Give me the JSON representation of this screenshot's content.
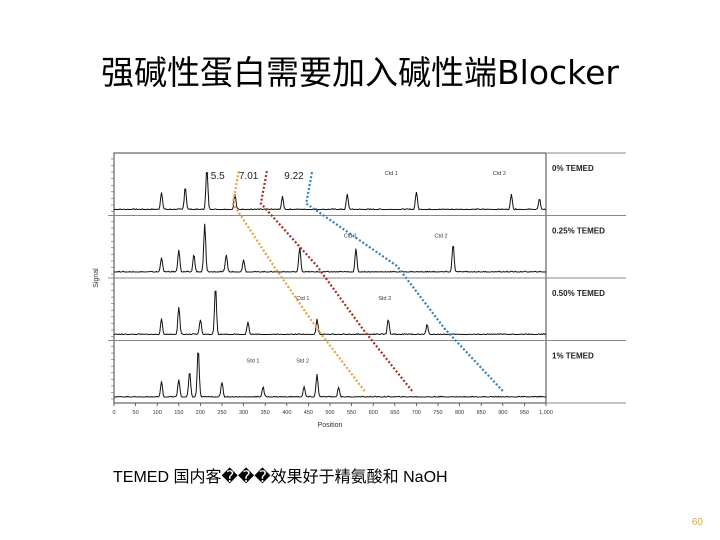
{
  "slide": {
    "title": "强碱性蛋白需要加入碱性端Blocker",
    "caption": "TEMED 国内客���效果好于精氨酸和 NaOH",
    "page_number": "60"
  },
  "chart_data": {
    "type": "line",
    "title": "",
    "xlabel": "Position",
    "ylabel": "Signal",
    "xlim": [
      0,
      1000
    ],
    "x_ticks": [
      0,
      50,
      100,
      150,
      200,
      250,
      300,
      350,
      400,
      450,
      500,
      550,
      600,
      650,
      700,
      750,
      800,
      850,
      900,
      950,
      1000
    ],
    "x_tick_labels": [
      "0",
      "50",
      "100",
      "150",
      "200",
      "250",
      "300",
      "350",
      "400",
      "450",
      "500",
      "550",
      "600",
      "650",
      "700",
      "750",
      "800",
      "850",
      "900",
      "950",
      "1,000"
    ],
    "panels": [
      {
        "name": "0% TEMED",
        "peaks": [
          [
            110,
            0.35
          ],
          [
            165,
            0.45
          ],
          [
            215,
            0.8
          ],
          [
            280,
            0.3
          ],
          [
            390,
            0.25
          ],
          [
            540,
            0.3
          ],
          [
            700,
            0.35
          ],
          [
            920,
            0.3
          ],
          [
            985,
            0.2
          ]
        ]
      },
      {
        "name": "0.25% TEMED",
        "peaks": [
          [
            110,
            0.3
          ],
          [
            150,
            0.45
          ],
          [
            185,
            0.35
          ],
          [
            210,
            0.95
          ],
          [
            260,
            0.35
          ],
          [
            300,
            0.25
          ],
          [
            430,
            0.5
          ],
          [
            560,
            0.45
          ],
          [
            785,
            0.55
          ]
        ]
      },
      {
        "name": "0.50% TEMED",
        "peaks": [
          [
            110,
            0.3
          ],
          [
            150,
            0.55
          ],
          [
            200,
            0.3
          ],
          [
            235,
            0.95
          ],
          [
            310,
            0.25
          ],
          [
            470,
            0.3
          ],
          [
            635,
            0.3
          ],
          [
            725,
            0.2
          ]
        ]
      },
      {
        "name": "1% TEMED",
        "peaks": [
          [
            110,
            0.3
          ],
          [
            150,
            0.35
          ],
          [
            175,
            0.5
          ],
          [
            195,
            0.95
          ],
          [
            250,
            0.3
          ],
          [
            345,
            0.2
          ],
          [
            440,
            0.2
          ],
          [
            470,
            0.45
          ],
          [
            520,
            0.2
          ]
        ]
      }
    ],
    "markers": [
      {
        "label": "5.5",
        "color": "#e8a040",
        "points": [
          [
            275,
            0
          ],
          [
            370,
            1
          ],
          [
            470,
            2
          ],
          [
            580,
            3
          ]
        ]
      },
      {
        "label": "7.01",
        "color": "#a03020",
        "points": [
          [
            340,
            0
          ],
          [
            470,
            1
          ],
          [
            575,
            2
          ],
          [
            690,
            3
          ]
        ]
      },
      {
        "label": "9.22",
        "color": "#3080c0",
        "points": [
          [
            445,
            0
          ],
          [
            655,
            1
          ],
          [
            765,
            2
          ],
          [
            900,
            3
          ]
        ]
      }
    ],
    "peak_labels": [
      {
        "text": "Ctd 1",
        "panel": 0,
        "x": 650
      },
      {
        "text": "Ctd 2",
        "panel": 0,
        "x": 900
      },
      {
        "text": "Ctd 1",
        "panel": 1,
        "x": 555
      },
      {
        "text": "Ctd 2",
        "panel": 1,
        "x": 765
      },
      {
        "text": "Ctd 1",
        "panel": 2,
        "x": 445
      },
      {
        "text": "Std 2",
        "panel": 2,
        "x": 635
      },
      {
        "text": "Std 1",
        "panel": 3,
        "x": 330
      },
      {
        "text": "Std 2",
        "panel": 3,
        "x": 445
      }
    ],
    "grid": false,
    "legend": "right"
  }
}
